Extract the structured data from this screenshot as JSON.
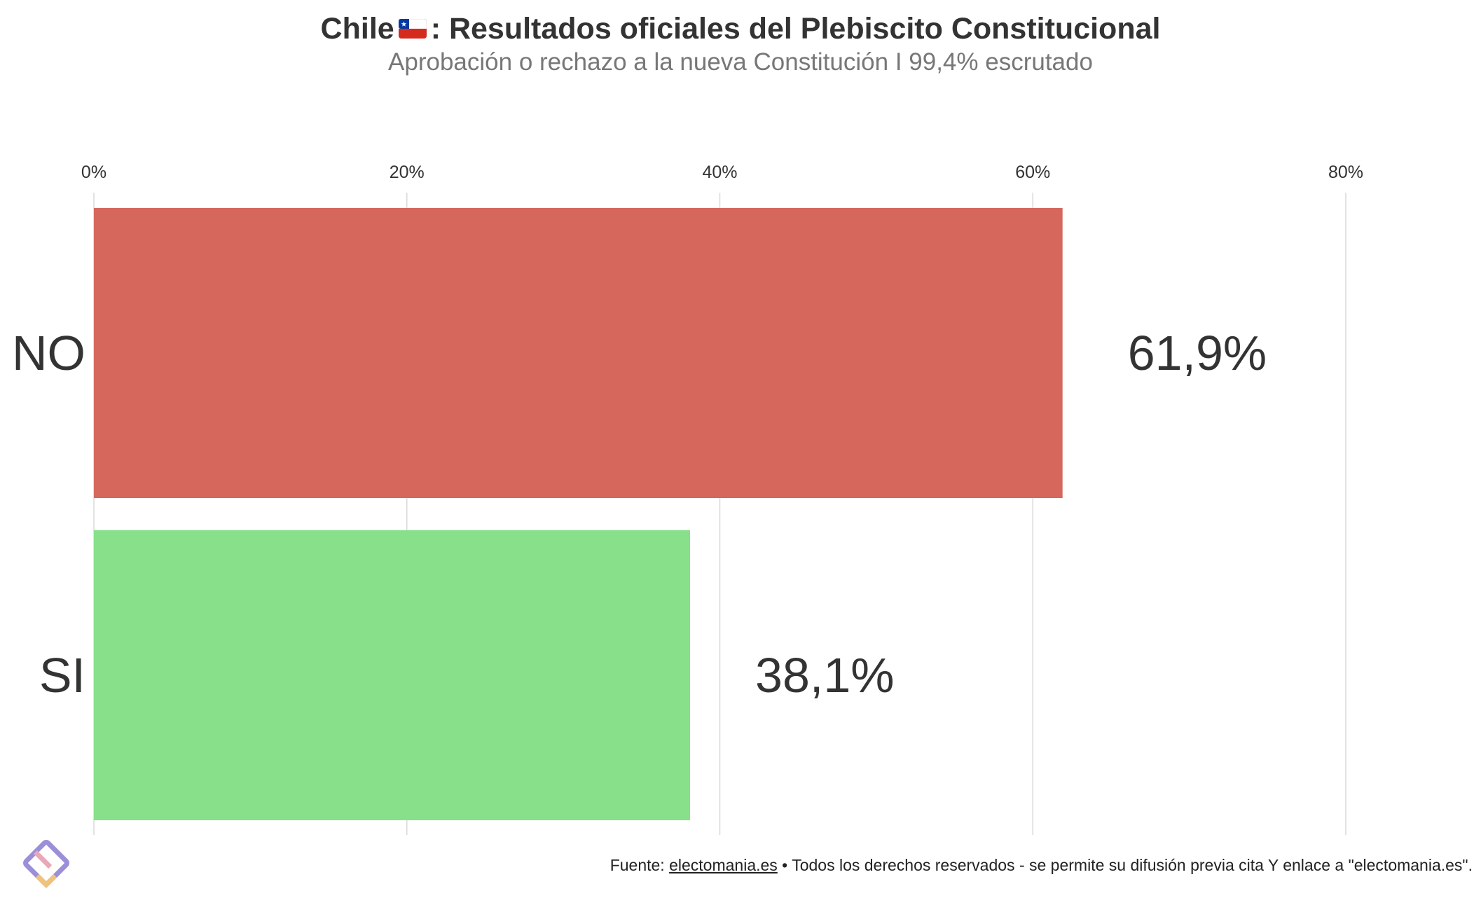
{
  "header": {
    "title_prefix": "Chile",
    "title_suffix": ": Resultados oficiales del Plebiscito Constitucional",
    "subtitle": "Aprobación o rechazo a la nueva Constitución I 99,4% escrutado"
  },
  "chart_data": {
    "type": "bar",
    "orientation": "horizontal",
    "title": "Chile 🇨🇱: Resultados oficiales del Plebiscito Constitucional",
    "subtitle": "Aprobación o rechazo a la nueva Constitución I 99,4% escrutado",
    "categories": [
      "NO",
      "SI"
    ],
    "values": [
      61.9,
      38.1
    ],
    "value_labels": [
      "61,9%",
      "38,1%"
    ],
    "colors": [
      "#d6675c",
      "#88e08a"
    ],
    "xlim": [
      0,
      80
    ],
    "xticks": [
      0,
      20,
      40,
      60,
      80
    ],
    "xtick_labels": [
      "0%",
      "20%",
      "40%",
      "60%",
      "80%"
    ],
    "xaxis_position": "top",
    "grid": true
  },
  "footer": {
    "source_prefix": "Fuente: ",
    "source_link": "electomania.es",
    "source_rest": " • Todos los derechos reservados - se permite su difusión previa cita Y enlace a \"electomania.es\"."
  },
  "logo": {
    "icon": "electomania-logo-icon"
  }
}
